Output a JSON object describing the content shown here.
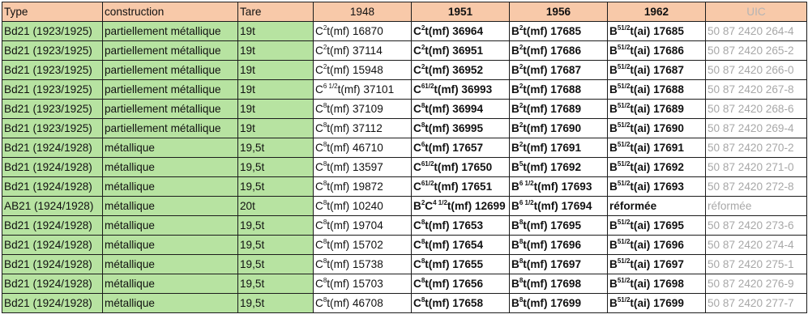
{
  "headers": {
    "type": "Type",
    "construction": "construction",
    "tare": "Tare",
    "y1948": "1948",
    "y1951": "1951",
    "y1956": "1956",
    "y1962": "1962",
    "uic": "UIC"
  },
  "colors": {
    "header_bg": "#f8c9a9",
    "green_cells": "#b7e3a1",
    "uic_text": "#a8a8a8"
  },
  "rows": [
    {
      "type": "Bd21 (1923/1925)",
      "construction": "partiellement métallique",
      "tare": "19t",
      "y1948": {
        "prefix": "C",
        "sup": "2",
        "rest": "t(mf) 16870"
      },
      "y1951": {
        "prefix": "C",
        "sup": "2",
        "rest": "t(mf) 36964"
      },
      "y1956": {
        "prefix": "B",
        "sup": "2",
        "rest": "t(mf) 17685"
      },
      "y1962": {
        "prefix": "B",
        "sup": "51/2",
        "rest": "t(ai) 17685"
      },
      "uic": "50 87 2420 264-4"
    },
    {
      "type": "Bd21 (1923/1925)",
      "construction": "partiellement métallique",
      "tare": "19t",
      "y1948": {
        "prefix": "C",
        "sup": "2",
        "rest": "t(mf) 37114"
      },
      "y1951": {
        "prefix": "C",
        "sup": "2",
        "rest": "t(mf) 36951"
      },
      "y1956": {
        "prefix": "B",
        "sup": "2",
        "rest": "t(mf) 17686"
      },
      "y1962": {
        "prefix": "B",
        "sup": "51/2",
        "rest": "t(ai) 17686"
      },
      "uic": "50 87 2420 265-2"
    },
    {
      "type": "Bd21 (1923/1925)",
      "construction": "partiellement métallique",
      "tare": "19t",
      "y1948": {
        "prefix": "C",
        "sup": "2",
        "rest": "t(mf) 15948"
      },
      "y1951": {
        "prefix": "C",
        "sup": "2",
        "rest": "t(mf) 36952"
      },
      "y1956": {
        "prefix": "B",
        "sup": "2",
        "rest": "t(mf) 17687"
      },
      "y1962": {
        "prefix": "B",
        "sup": "51/2",
        "rest": "t(ai) 17687"
      },
      "uic": "50 87 2420 266-0"
    },
    {
      "type": "Bd21 (1923/1925)",
      "construction": "partiellement métallique",
      "tare": "19t",
      "y1948": {
        "prefix": "C",
        "sup": "6 1/2",
        "rest": "t(mf) 37101"
      },
      "y1951": {
        "prefix": "C",
        "sup": "61/2",
        "rest": "t(mf) 36993"
      },
      "y1956": {
        "prefix": "B",
        "sup": "2",
        "rest": "t(mf) 17688"
      },
      "y1962": {
        "prefix": "B",
        "sup": "51/2",
        "rest": "t(ai) 17688"
      },
      "uic": "50 87 2420 267-8"
    },
    {
      "type": "Bd21 (1923/1925)",
      "construction": "partiellement métallique",
      "tare": "19t",
      "y1948": {
        "prefix": "C",
        "sup": "8",
        "rest": "t(mf) 37109"
      },
      "y1951": {
        "prefix": "C",
        "sup": "8",
        "rest": "t(mf) 36994"
      },
      "y1956": {
        "prefix": "B",
        "sup": "2",
        "rest": "t(mf) 17689"
      },
      "y1962": {
        "prefix": "B",
        "sup": "51/2",
        "rest": "t(ai) 17689"
      },
      "uic": "50 87 2420 268-6"
    },
    {
      "type": "Bd21 (1923/1925)",
      "construction": "partiellement métallique",
      "tare": "19t",
      "y1948": {
        "prefix": "C",
        "sup": "8",
        "rest": "t(mf) 37112"
      },
      "y1951": {
        "prefix": "C",
        "sup": "8",
        "rest": "t(mf) 36995"
      },
      "y1956": {
        "prefix": "B",
        "sup": "2",
        "rest": "t(mf) 17690"
      },
      "y1962": {
        "prefix": "B",
        "sup": "51/2",
        "rest": "t(ai) 17690"
      },
      "uic": "50 87 2420 269-4"
    },
    {
      "type": "Bd21 (1924/1928)",
      "construction": "métallique",
      "tare": "19,5t",
      "y1948": {
        "prefix": "C",
        "sup": "8",
        "rest": "t(mf) 46710"
      },
      "y1951": {
        "prefix": "C",
        "sup": "6",
        "rest": "t(mf) 17657"
      },
      "y1956": {
        "prefix": "B",
        "sup": "2",
        "rest": "t(mf) 17691"
      },
      "y1962": {
        "prefix": "B",
        "sup": "51/2",
        "rest": "t(ai) 17691"
      },
      "uic": "50 87 2420 270-2"
    },
    {
      "type": "Bd21 (1924/1928)",
      "construction": "métallique",
      "tare": "19,5t",
      "y1948": {
        "prefix": "C",
        "sup": "8",
        "rest": "t(mf) 13597"
      },
      "y1951": {
        "prefix": "C",
        "sup": "61/2",
        "rest": "t(mf) 17650"
      },
      "y1956": {
        "prefix": "B",
        "sup": "5",
        "rest": "t(mf) 17692"
      },
      "y1962": {
        "prefix": "B",
        "sup": "51/2",
        "rest": "t(ai) 17692"
      },
      "uic": "50 87 2420 271-0"
    },
    {
      "type": "Bd21 (1924/1928)",
      "construction": "métallique",
      "tare": "19,5t",
      "y1948": {
        "prefix": "C",
        "sup": "8",
        "rest": "t(mf) 19872"
      },
      "y1951": {
        "prefix": "C",
        "sup": "61/2",
        "rest": "t(mf) 17651"
      },
      "y1956": {
        "prefix": "B",
        "sup": "6 1/2",
        "rest": "t(mf) 17693"
      },
      "y1962": {
        "prefix": "B",
        "sup": "51/2",
        "rest": "t(ai) 17693"
      },
      "uic": "50 87 2420 272-8"
    },
    {
      "type": "AB21 (1924/1928)",
      "construction": "métallique",
      "tare": "20t",
      "y1948": {
        "prefix": "C",
        "sup": "8",
        "rest": "t(mf) 10240"
      },
      "y1951": {
        "prefix": "B",
        "sup": "2",
        "rest": "C",
        "sup2": "4 1/2",
        "rest2": "t(mf) 12699"
      },
      "y1956": {
        "prefix": "B",
        "sup": "6 1/2",
        "rest": "t(mf) 17694"
      },
      "y1962": {
        "prefix": "réformée",
        "sup": "",
        "rest": ""
      },
      "uic": "réformée"
    },
    {
      "type": "Bd21 (1924/1928)",
      "construction": "métallique",
      "tare": "19,5t",
      "y1948": {
        "prefix": "C",
        "sup": "8",
        "rest": "t(mf) 19704"
      },
      "y1951": {
        "prefix": "C",
        "sup": "8",
        "rest": "t(mf) 17653"
      },
      "y1956": {
        "prefix": "B",
        "sup": "8",
        "rest": "t(mf) 17695"
      },
      "y1962": {
        "prefix": "B",
        "sup": "51/2",
        "rest": "t(ai) 17695"
      },
      "uic": "50 87 2420 273-6"
    },
    {
      "type": "Bd21 (1924/1928)",
      "construction": "métallique",
      "tare": "19,5t",
      "y1948": {
        "prefix": "C",
        "sup": "8",
        "rest": "t(mf) 15702"
      },
      "y1951": {
        "prefix": "C",
        "sup": "8",
        "rest": "t(mf) 17654"
      },
      "y1956": {
        "prefix": "B",
        "sup": "8",
        "rest": "t(mf) 17696"
      },
      "y1962": {
        "prefix": "B",
        "sup": "51/2",
        "rest": "t(ai) 17696"
      },
      "uic": "50 87 2420 274-4"
    },
    {
      "type": "Bd21 (1924/1928)",
      "construction": "métallique",
      "tare": "19,5t",
      "y1948": {
        "prefix": "C",
        "sup": "8",
        "rest": "t(mf) 15738"
      },
      "y1951": {
        "prefix": "C",
        "sup": "8",
        "rest": "t(mf) 17655"
      },
      "y1956": {
        "prefix": "B",
        "sup": "8",
        "rest": "t(mf) 17697"
      },
      "y1962": {
        "prefix": "B",
        "sup": "51/2",
        "rest": "t(ai) 17697"
      },
      "uic": "50 87 2420 275-1"
    },
    {
      "type": "Bd21 (1924/1928)",
      "construction": "métallique",
      "tare": "19,5t",
      "y1948": {
        "prefix": "C",
        "sup": "8",
        "rest": "t(mf) 15703"
      },
      "y1951": {
        "prefix": "C",
        "sup": "8",
        "rest": "t(mf) 17656"
      },
      "y1956": {
        "prefix": "B",
        "sup": "8",
        "rest": "t(mf) 17698"
      },
      "y1962": {
        "prefix": "B",
        "sup": "51/2",
        "rest": "t(ai) 17698"
      },
      "uic": "50 87 2420 276-9"
    },
    {
      "type": "Bd21 (1924/1928)",
      "construction": "métallique",
      "tare": "19,5t",
      "y1948": {
        "prefix": "C",
        "sup": "8",
        "rest": "t(mf) 46708"
      },
      "y1951": {
        "prefix": "C",
        "sup": "8",
        "rest": "t(mf) 17658"
      },
      "y1956": {
        "prefix": "B",
        "sup": "8",
        "rest": "t(mf) 17699"
      },
      "y1962": {
        "prefix": "B",
        "sup": "51/2",
        "rest": "t(ai) 17699"
      },
      "uic": "50 87 2420 277-7"
    }
  ]
}
